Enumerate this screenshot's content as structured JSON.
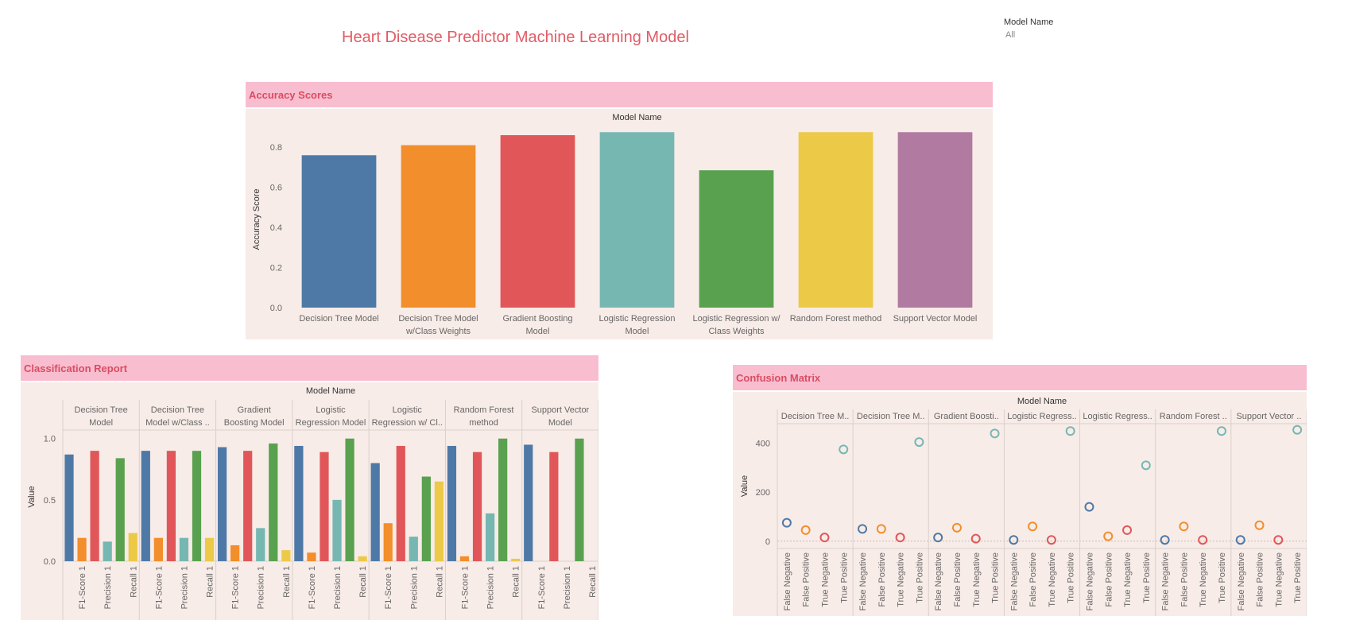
{
  "page": {
    "title": "Heart Disease Predictor Machine Learning Model",
    "filter": {
      "label": "Model Name",
      "value": "All"
    }
  },
  "colors": {
    "header_bg": "#f9bdd0",
    "header_text": "#d94d61",
    "panel_bg": "#f8ece8",
    "models": [
      "#4e79a7",
      "#f28e2b",
      "#e15759",
      "#76b7b2",
      "#59a14f",
      "#edc948",
      "#b07aa1"
    ]
  },
  "chart_data": [
    {
      "id": "accuracy",
      "panel_title": "Accuracy Scores",
      "type": "bar",
      "column_header": "Model Name",
      "ylabel": "Accuracy Score",
      "ylim": [
        0,
        0.88
      ],
      "yticks": [
        "0.0",
        "0.2",
        "0.4",
        "0.6",
        "0.8"
      ],
      "categories": [
        [
          "Decision Tree Model"
        ],
        [
          "Decision Tree Model",
          "w/Class Weights"
        ],
        [
          "Gradient Boosting",
          "Model"
        ],
        [
          "Logistic Regression",
          "Model"
        ],
        [
          "Logistic Regression w/",
          "Class Weights"
        ],
        [
          "Random Forest method"
        ],
        [
          "Support Vector Model"
        ]
      ],
      "values": [
        0.76,
        0.81,
        0.86,
        0.875,
        0.685,
        0.875,
        0.875
      ]
    },
    {
      "id": "classification",
      "panel_title": "Classification Report",
      "type": "bar",
      "column_header": "Model Name",
      "ylabel": "Value",
      "ylim": [
        0,
        1.05
      ],
      "yticks": [
        "0.0",
        "0.5",
        "1.0"
      ],
      "groups": [
        [
          "Decision Tree",
          "Model"
        ],
        [
          "Decision Tree",
          "Model w/Class .."
        ],
        [
          "Gradient",
          "Boosting Model"
        ],
        [
          "Logistic",
          "Regression Model"
        ],
        [
          "Logistic",
          "Regression w/ Cl.."
        ],
        [
          "Random Forest",
          "method"
        ],
        [
          "Support Vector",
          "Model"
        ]
      ],
      "categories": [
        "",
        "F1-Score 1",
        "",
        "Precision 1",
        "",
        "Recall 1"
      ],
      "values": [
        [
          0.87,
          0.19,
          0.9,
          0.16,
          0.84,
          0.23
        ],
        [
          0.9,
          0.19,
          0.9,
          0.19,
          0.9,
          0.19
        ],
        [
          0.93,
          0.13,
          0.9,
          0.27,
          0.96,
          0.09
        ],
        [
          0.94,
          0.07,
          0.89,
          0.5,
          1.0,
          0.04
        ],
        [
          0.8,
          0.31,
          0.94,
          0.2,
          0.69,
          0.65
        ],
        [
          0.94,
          0.04,
          0.89,
          0.39,
          1.0,
          0.02
        ],
        [
          0.95,
          0.0,
          0.89,
          0.0,
          1.0,
          0.0
        ]
      ]
    },
    {
      "id": "confusion",
      "panel_title": "Confusion Matrix",
      "type": "scatter",
      "column_header": "Model Name",
      "ylabel": "Value",
      "ylim": [
        -30,
        480
      ],
      "yticks": [
        "0",
        "200",
        "400"
      ],
      "groups": [
        "Decision Tree M..",
        "Decision Tree M..",
        "Gradient Boosti..",
        "Logistic Regress..",
        "Logistic Regress..",
        "Random Forest ..",
        "Support Vector .."
      ],
      "categories": [
        "False Negative",
        "False Positive",
        "True Negative",
        "True Positive"
      ],
      "values": [
        [
          75,
          45,
          15,
          375
        ],
        [
          50,
          50,
          15,
          405
        ],
        [
          15,
          55,
          10,
          440
        ],
        [
          5,
          60,
          5,
          450
        ],
        [
          140,
          20,
          45,
          310
        ],
        [
          5,
          60,
          5,
          450
        ],
        [
          5,
          65,
          5,
          455
        ]
      ]
    }
  ]
}
